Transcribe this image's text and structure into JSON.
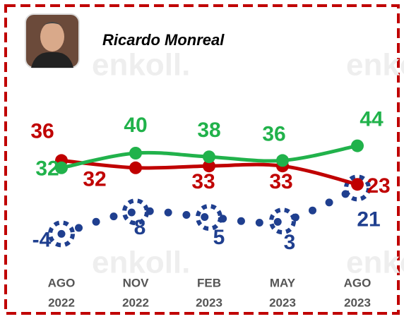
{
  "chart_data": {
    "type": "line",
    "title": "Ricardo Monreal",
    "watermark": "enkoll.",
    "categories": [
      [
        "AGO",
        "2022"
      ],
      [
        "NOV",
        "2022"
      ],
      [
        "FEB",
        "2023"
      ],
      [
        "MAY",
        "2023"
      ],
      [
        "AGO",
        "2023"
      ]
    ],
    "series": [
      {
        "color": "#21b24b",
        "style": "solid",
        "values": [
          32,
          40,
          38,
          36,
          44
        ]
      },
      {
        "color": "#c00000",
        "style": "solid",
        "values": [
          36,
          32,
          33,
          33,
          23
        ]
      },
      {
        "color": "#1f3f8f",
        "style": "dotted",
        "values": [
          -4,
          8,
          5,
          3,
          21
        ]
      }
    ],
    "ylim": [
      -10,
      50
    ],
    "grid": false
  }
}
